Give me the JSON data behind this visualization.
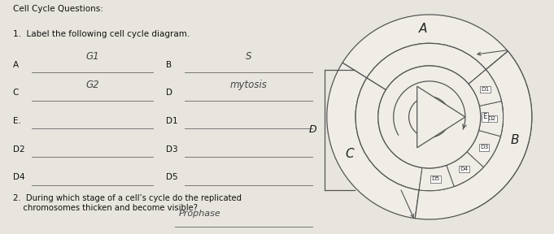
{
  "title": "Cell Cycle Questions:",
  "q1_text": "1.  Label the following cell cycle diagram.",
  "q2_text": "2.  During which stage of a cell’s cycle do the replicated\n    chromosomes thicken and become visible?",
  "labels_left": [
    "A",
    "C",
    "E.",
    "D2",
    "D4"
  ],
  "labels_right": [
    "B",
    "D",
    "D1",
    "D3",
    "D5"
  ],
  "handwritten_left": [
    "G1",
    "G2",
    "",
    "",
    ""
  ],
  "handwritten_right": [
    "S",
    "mytosis",
    "",
    "",
    ""
  ],
  "q2_answer": "Prophase",
  "bg_color": "#ccc8c0",
  "paper_color": "#e8e5de",
  "diagram": {
    "D_sub_labels_top_to_bot": [
      "D5",
      "D4",
      "D3",
      "D2",
      "D1"
    ],
    "label_E": "E",
    "label_D": "D",
    "line_color": "#555555",
    "fill_color": "#dedad2",
    "white_fill": "#f0ede6"
  }
}
